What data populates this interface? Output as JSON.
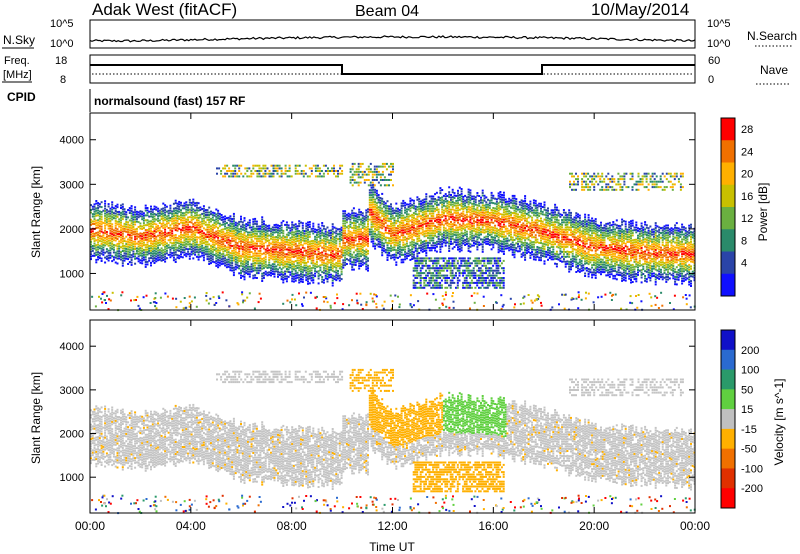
{
  "header": {
    "title": "Adak West (fitACF)",
    "beam": "Beam 04",
    "date": "10/May/2014"
  },
  "status_panels": {
    "nsky_label": "N.Sky",
    "nsky_ticks": [
      "10^5",
      "10^0"
    ],
    "nsearch_label": "N.Search",
    "nsearch_ticks": [
      "10^5",
      "10^0"
    ],
    "freq_label": "Freq.",
    "freq_unit": "[MHz]",
    "freq_ticks": [
      "18",
      "8"
    ],
    "nave_label": "Nave",
    "nave_ticks": [
      "60",
      "0"
    ],
    "cpid_label": "CPID",
    "cpid_value": "normalsound (fast) 157 RF"
  },
  "chart_data": [
    {
      "type": "heatmap",
      "name": "power-panel",
      "ylabel": "Slant Range [km]",
      "yticks": [
        "4000",
        "3000",
        "2000",
        "1000"
      ],
      "ytick_values": [
        4000,
        3000,
        2000,
        1000
      ],
      "ylim": [
        180,
        4600
      ],
      "colorbar_label": "Power [dB]",
      "colorbar_ticks": [
        "28",
        "24",
        "20",
        "16",
        "12",
        "8",
        "4"
      ],
      "colorbar_colors": [
        "#ff0000",
        "#f07000",
        "#ffb000",
        "#c8c000",
        "#6ab040",
        "#2a8a6a",
        "#2a44a8",
        "#1010ff"
      ],
      "trace": [
        [
          0,
          2000
        ],
        [
          2,
          1850
        ],
        [
          4,
          2050
        ],
        [
          6,
          1600
        ],
        [
          8,
          1520
        ],
        [
          10,
          1450
        ],
        [
          10.5,
          2700
        ],
        [
          12,
          1900
        ],
        [
          14,
          2250
        ],
        [
          16,
          2200
        ],
        [
          18,
          1950
        ],
        [
          20,
          1600
        ],
        [
          22,
          1500
        ],
        [
          24,
          1450
        ]
      ]
    },
    {
      "type": "heatmap",
      "name": "velocity-panel",
      "ylabel": "Slant Range [km]",
      "yticks": [
        "4000",
        "3000",
        "2000",
        "1000"
      ],
      "ytick_values": [
        4000,
        3000,
        2000,
        1000
      ],
      "ylim": [
        180,
        4600
      ],
      "colorbar_label": "Velocity [m s^-1]",
      "colorbar_ticks": [
        "200",
        "100",
        "50",
        "15",
        "-15",
        "-50",
        "-100",
        "-200"
      ],
      "colorbar_colors": [
        "#1010c8",
        "#2a6ad0",
        "#2a9a6a",
        "#60d040",
        "#c0c0c0",
        "#ffb000",
        "#f07000",
        "#e03000",
        "#ff0000"
      ]
    }
  ],
  "xaxis": {
    "label": "Time UT",
    "ticks": [
      "00:00",
      "04:00",
      "08:00",
      "12:00",
      "16:00",
      "20:00",
      "00:00"
    ],
    "tick_hours": [
      0,
      4,
      8,
      12,
      16,
      20,
      24
    ]
  }
}
